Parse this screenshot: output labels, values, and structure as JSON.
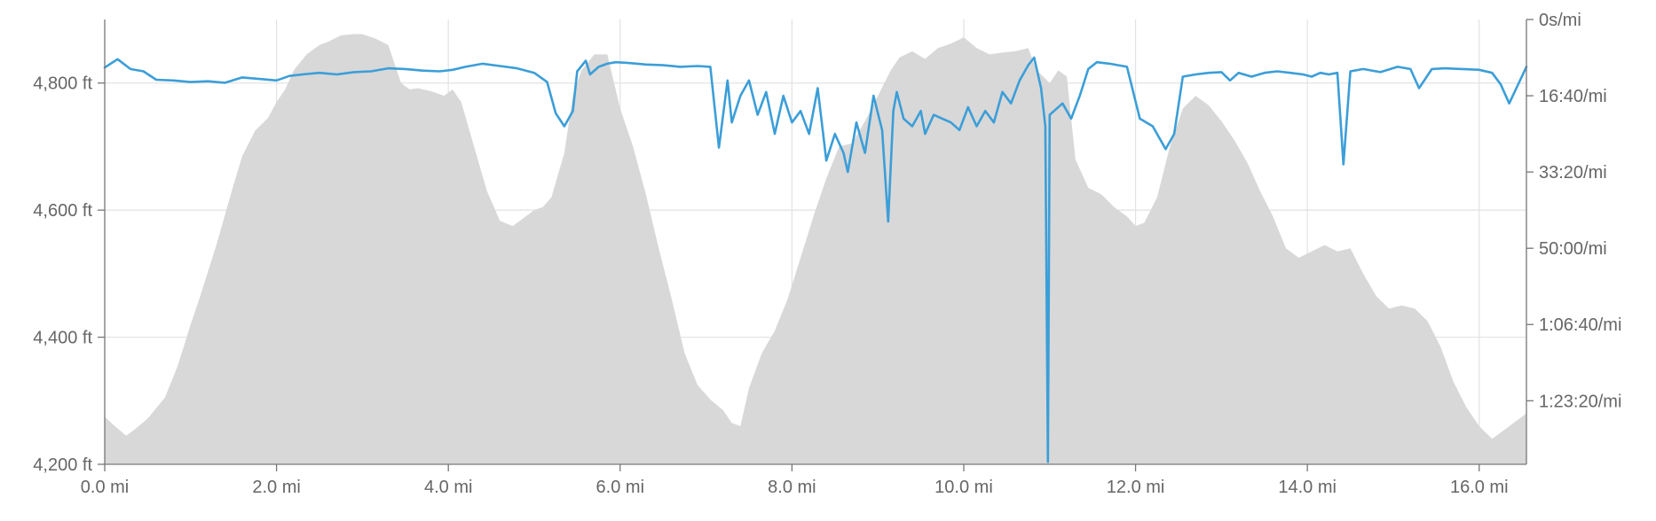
{
  "chart_data": {
    "type": "area",
    "title": "",
    "legend": "none",
    "grid": true,
    "x_unit": "mi",
    "xlim": [
      0,
      16.55
    ],
    "x_ticks": [
      0,
      2,
      4,
      6,
      8,
      10,
      12,
      14,
      16
    ],
    "x_tick_labels": [
      "0.0 mi",
      "2.0 mi",
      "4.0 mi",
      "6.0 mi",
      "8.0 mi",
      "10.0 mi",
      "12.0 mi",
      "14.0 mi",
      "16.0 mi"
    ],
    "y_left": {
      "unit": "ft",
      "lim": [
        4200,
        4900
      ],
      "ticks": [
        4200,
        4400,
        4600,
        4800
      ],
      "tick_labels": [
        "4,200 ft",
        "4,400 ft",
        "4,600 ft",
        "4,800 ft"
      ]
    },
    "y_right": {
      "unit": "s/mi",
      "lim": [
        0,
        5833
      ],
      "inverted": true,
      "ticks": [
        0,
        1000,
        2000,
        3000,
        4000,
        5000
      ],
      "tick_labels": [
        "0s/mi",
        "16:40/mi",
        "33:20/mi",
        "50:00/mi",
        "1:06:40/mi",
        "1:23:20/mi"
      ]
    },
    "series": [
      {
        "kind": "area",
        "axis": "left",
        "color": "#d8d8d8",
        "x": [
          0,
          0.1,
          0.25,
          0.35,
          0.5,
          0.7,
          0.85,
          1.0,
          1.1,
          1.3,
          1.5,
          1.6,
          1.75,
          1.9,
          2.0,
          2.1,
          2.2,
          2.35,
          2.5,
          2.6,
          2.75,
          2.9,
          3.0,
          3.15,
          3.3,
          3.45,
          3.55,
          3.65,
          3.8,
          3.95,
          4.05,
          4.15,
          4.3,
          4.45,
          4.6,
          4.75,
          4.85,
          5.0,
          5.1,
          5.2,
          5.35,
          5.45,
          5.55,
          5.7,
          5.85,
          6.0,
          6.15,
          6.3,
          6.45,
          6.6,
          6.75,
          6.9,
          7.05,
          7.2,
          7.3,
          7.4,
          7.5,
          7.65,
          7.8,
          7.95,
          8.1,
          8.25,
          8.4,
          8.55,
          8.7,
          8.85,
          9.0,
          9.15,
          9.25,
          9.4,
          9.55,
          9.7,
          9.85,
          10.0,
          10.15,
          10.3,
          10.45,
          10.6,
          10.75,
          10.85,
          11.0,
          11.1,
          11.2,
          11.3,
          11.45,
          11.6,
          11.75,
          11.9,
          12.0,
          12.1,
          12.25,
          12.4,
          12.55,
          12.7,
          12.85,
          13.0,
          13.15,
          13.3,
          13.45,
          13.6,
          13.75,
          13.9,
          14.05,
          14.2,
          14.35,
          14.5,
          14.65,
          14.8,
          14.95,
          15.1,
          15.25,
          15.4,
          15.55,
          15.7,
          15.85,
          16.0,
          16.15,
          16.3,
          16.45,
          16.55
        ],
        "y": [
          4275,
          4262,
          4245,
          4255,
          4272,
          4305,
          4355,
          4420,
          4460,
          4545,
          4640,
          4685,
          4725,
          4745,
          4770,
          4790,
          4820,
          4845,
          4860,
          4865,
          4875,
          4877,
          4877,
          4870,
          4860,
          4800,
          4790,
          4792,
          4787,
          4780,
          4790,
          4770,
          4700,
          4630,
          4583,
          4575,
          4585,
          4600,
          4605,
          4620,
          4690,
          4780,
          4820,
          4845,
          4845,
          4760,
          4700,
          4625,
          4540,
          4460,
          4375,
          4325,
          4302,
          4285,
          4265,
          4260,
          4320,
          4375,
          4410,
          4460,
          4525,
          4590,
          4650,
          4700,
          4705,
          4740,
          4780,
          4820,
          4840,
          4850,
          4838,
          4855,
          4862,
          4872,
          4855,
          4845,
          4848,
          4850,
          4855,
          4820,
          4800,
          4820,
          4810,
          4680,
          4635,
          4625,
          4605,
          4590,
          4575,
          4580,
          4620,
          4700,
          4760,
          4780,
          4765,
          4740,
          4710,
          4675,
          4630,
          4590,
          4540,
          4525,
          4535,
          4545,
          4535,
          4540,
          4500,
          4465,
          4445,
          4450,
          4445,
          4425,
          4385,
          4330,
          4290,
          4260,
          4240,
          4255,
          4270,
          4280
        ]
      },
      {
        "kind": "line",
        "axis": "right",
        "color": "#3b9ed8",
        "x": [
          0,
          0.15,
          0.3,
          0.45,
          0.6,
          0.8,
          1.0,
          1.2,
          1.4,
          1.6,
          1.8,
          2.0,
          2.15,
          2.3,
          2.5,
          2.7,
          2.9,
          3.1,
          3.3,
          3.5,
          3.7,
          3.9,
          4.05,
          4.2,
          4.4,
          4.6,
          4.8,
          5.0,
          5.15,
          5.25,
          5.35,
          5.45,
          5.5,
          5.6,
          5.65,
          5.75,
          5.85,
          5.95,
          6.1,
          6.3,
          6.5,
          6.7,
          6.9,
          7.05,
          7.15,
          7.25,
          7.3,
          7.4,
          7.5,
          7.6,
          7.7,
          7.8,
          7.9,
          8.0,
          8.1,
          8.2,
          8.3,
          8.4,
          8.5,
          8.6,
          8.65,
          8.75,
          8.85,
          8.95,
          9.05,
          9.12,
          9.18,
          9.22,
          9.3,
          9.4,
          9.5,
          9.55,
          9.65,
          9.75,
          9.85,
          9.95,
          10.05,
          10.15,
          10.25,
          10.35,
          10.45,
          10.55,
          10.65,
          10.75,
          10.82,
          10.9,
          10.95,
          10.98,
          11.0,
          11.05,
          11.15,
          11.25,
          11.35,
          11.45,
          11.55,
          11.7,
          11.9,
          12.05,
          12.2,
          12.35,
          12.45,
          12.55,
          12.7,
          12.85,
          13.0,
          13.1,
          13.2,
          13.35,
          13.5,
          13.65,
          13.8,
          13.95,
          14.05,
          14.15,
          14.25,
          14.35,
          14.42,
          14.5,
          14.65,
          14.85,
          15.05,
          15.2,
          15.3,
          15.45,
          15.6,
          15.8,
          16.0,
          16.15,
          16.25,
          16.35,
          16.45,
          16.55
        ],
        "y": [
          630,
          520,
          650,
          680,
          790,
          800,
          820,
          810,
          830,
          760,
          780,
          800,
          740,
          720,
          700,
          720,
          690,
          680,
          640,
          650,
          670,
          680,
          660,
          620,
          580,
          610,
          640,
          700,
          820,
          1230,
          1400,
          1200,
          680,
          540,
          720,
          620,
          580,
          560,
          570,
          590,
          600,
          620,
          610,
          620,
          1680,
          800,
          1350,
          1000,
          800,
          1250,
          950,
          1500,
          1000,
          1350,
          1200,
          1500,
          900,
          1850,
          1500,
          1750,
          2000,
          1350,
          1750,
          1000,
          1450,
          2650,
          1200,
          950,
          1300,
          1400,
          1200,
          1500,
          1250,
          1300,
          1350,
          1450,
          1150,
          1400,
          1200,
          1350,
          950,
          1100,
          800,
          600,
          500,
          900,
          1400,
          5800,
          1250,
          1200,
          1100,
          1300,
          1000,
          650,
          560,
          580,
          620,
          1300,
          1400,
          1700,
          1500,
          750,
          720,
          700,
          690,
          800,
          700,
          750,
          700,
          680,
          700,
          720,
          750,
          700,
          720,
          700,
          1900,
          680,
          650,
          690,
          620,
          650,
          900,
          650,
          640,
          650,
          660,
          700,
          850,
          1100,
          860,
          620
        ]
      }
    ]
  }
}
